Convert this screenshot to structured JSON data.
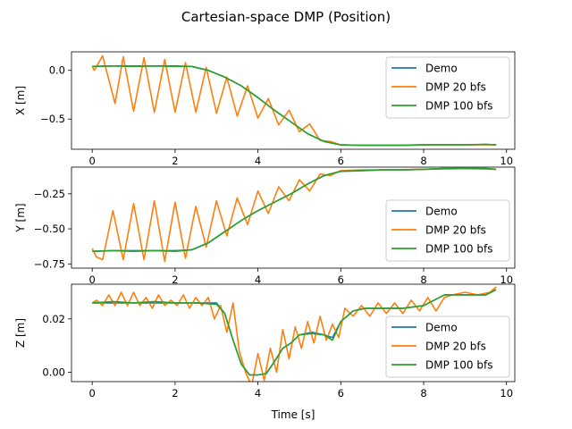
{
  "chart_data": {
    "type": "line",
    "title": "Cartesian-space DMP (Position)",
    "xlabel": "Time [s]",
    "xlim": [
      -0.5,
      10.2
    ],
    "xticks": [
      0,
      2,
      4,
      6,
      8,
      10
    ],
    "legend_placement": "lower-right",
    "colors": {
      "Demo": "#1f77b4",
      "DMP 20 bfs": "#ff7f0e",
      "DMP 100 bfs": "#2ca02c"
    },
    "subplots": [
      {
        "ylabel": "X [m]",
        "ylim": [
          -0.81,
          0.19
        ],
        "yticks": [
          0.0,
          -0.5
        ],
        "ytick_labels": [
          "0.0",
          "−0.5"
        ],
        "series": [
          {
            "name": "Demo",
            "x": [
              0,
              0.5,
              1.0,
              1.5,
              2.0,
              2.4,
              2.8,
              3.2,
              3.6,
              4.0,
              4.4,
              4.8,
              5.2,
              5.6,
              6.0,
              6.5,
              7.0,
              7.5,
              8.0,
              8.5,
              9.0,
              9.5,
              9.75
            ],
            "values": [
              0.04,
              0.045,
              0.045,
              0.045,
              0.045,
              0.04,
              0.0,
              -0.07,
              -0.16,
              -0.28,
              -0.41,
              -0.53,
              -0.65,
              -0.73,
              -0.765,
              -0.77,
              -0.77,
              -0.77,
              -0.765,
              -0.765,
              -0.765,
              -0.76,
              -0.765
            ]
          },
          {
            "name": "DMP 20 bfs",
            "x": [
              0,
              0.05,
              0.25,
              0.55,
              0.75,
              1.0,
              1.25,
              1.5,
              1.75,
              2.0,
              2.25,
              2.5,
              2.75,
              3.0,
              3.25,
              3.5,
              3.75,
              4.0,
              4.25,
              4.5,
              4.75,
              5.0,
              5.25,
              5.5,
              5.75,
              6.0,
              6.5,
              7.0,
              8.0,
              9.0,
              9.75
            ],
            "values": [
              0.04,
              0.0,
              0.15,
              -0.34,
              0.14,
              -0.42,
              0.13,
              -0.43,
              0.11,
              -0.43,
              0.08,
              -0.43,
              0.03,
              -0.44,
              -0.07,
              -0.47,
              -0.16,
              -0.49,
              -0.29,
              -0.56,
              -0.41,
              -0.63,
              -0.55,
              -0.72,
              -0.73,
              -0.765,
              -0.77,
              -0.77,
              -0.765,
              -0.765,
              -0.765
            ]
          },
          {
            "name": "DMP 100 bfs",
            "x": [
              0,
              0.5,
              1.0,
              1.5,
              2.0,
              2.4,
              2.8,
              3.2,
              3.6,
              4.0,
              4.4,
              4.8,
              5.2,
              5.6,
              6.0,
              6.5,
              7.0,
              7.5,
              8.0,
              8.5,
              9.0,
              9.5,
              9.75
            ],
            "values": [
              0.04,
              0.045,
              0.04,
              0.045,
              0.04,
              0.04,
              0.0,
              -0.07,
              -0.16,
              -0.28,
              -0.41,
              -0.53,
              -0.65,
              -0.73,
              -0.765,
              -0.77,
              -0.77,
              -0.77,
              -0.765,
              -0.765,
              -0.765,
              -0.76,
              -0.765
            ]
          }
        ]
      },
      {
        "ylabel": "Y [m]",
        "ylim": [
          -0.78,
          -0.06
        ],
        "yticks": [
          -0.25,
          -0.5,
          -0.75
        ],
        "ytick_labels": [
          "−0.25",
          "−0.50",
          "−0.75"
        ],
        "series": [
          {
            "name": "Demo",
            "x": [
              0,
              0.5,
              1.0,
              1.5,
              2.0,
              2.4,
              2.8,
              3.2,
              3.6,
              4.0,
              4.4,
              4.8,
              5.2,
              5.6,
              6.0,
              6.5,
              7.0,
              7.5,
              8.0,
              8.5,
              9.0,
              9.5,
              9.75
            ],
            "values": [
              -0.66,
              -0.655,
              -0.655,
              -0.655,
              -0.655,
              -0.65,
              -0.6,
              -0.52,
              -0.44,
              -0.37,
              -0.31,
              -0.25,
              -0.18,
              -0.12,
              -0.09,
              -0.085,
              -0.08,
              -0.08,
              -0.075,
              -0.07,
              -0.07,
              -0.07,
              -0.075
            ]
          },
          {
            "name": "DMP 20 bfs",
            "x": [
              0,
              0.1,
              0.25,
              0.5,
              0.75,
              1.0,
              1.25,
              1.5,
              1.75,
              2.0,
              2.25,
              2.5,
              2.75,
              3.0,
              3.25,
              3.5,
              3.75,
              4.0,
              4.25,
              4.5,
              4.75,
              5.0,
              5.25,
              5.5,
              5.75,
              6.0,
              6.5,
              7.0,
              8.0,
              9.0,
              9.75
            ],
            "values": [
              -0.64,
              -0.7,
              -0.72,
              -0.37,
              -0.72,
              -0.32,
              -0.72,
              -0.3,
              -0.73,
              -0.31,
              -0.71,
              -0.34,
              -0.63,
              -0.3,
              -0.55,
              -0.28,
              -0.47,
              -0.23,
              -0.39,
              -0.2,
              -0.3,
              -0.15,
              -0.23,
              -0.11,
              -0.12,
              -0.085,
              -0.08,
              -0.08,
              -0.075,
              -0.07,
              -0.075
            ]
          },
          {
            "name": "DMP 100 bfs",
            "x": [
              0,
              0.5,
              1.0,
              1.5,
              2.0,
              2.4,
              2.8,
              3.2,
              3.6,
              4.0,
              4.4,
              4.8,
              5.2,
              5.6,
              6.0,
              6.5,
              7.0,
              7.5,
              8.0,
              8.5,
              9.0,
              9.5,
              9.75
            ],
            "values": [
              -0.66,
              -0.655,
              -0.66,
              -0.655,
              -0.66,
              -0.65,
              -0.6,
              -0.52,
              -0.44,
              -0.37,
              -0.31,
              -0.25,
              -0.18,
              -0.12,
              -0.09,
              -0.085,
              -0.08,
              -0.08,
              -0.075,
              -0.07,
              -0.07,
              -0.07,
              -0.075
            ]
          }
        ]
      },
      {
        "ylabel": "Z [m]",
        "ylim": [
          -0.0035,
          0.033
        ],
        "yticks": [
          0.02,
          0.0
        ],
        "ytick_labels": [
          "0.02",
          "0.00"
        ],
        "series": [
          {
            "name": "Demo",
            "x": [
              0,
              0.5,
              1.0,
              1.5,
              2.0,
              2.5,
              3.0,
              3.2,
              3.4,
              3.6,
              3.8,
              4.0,
              4.2,
              4.4,
              4.6,
              4.8,
              5.0,
              5.3,
              5.6,
              5.8,
              6.0,
              6.3,
              6.6,
              7.0,
              7.5,
              8.0,
              8.5,
              9.0,
              9.5,
              9.75
            ],
            "values": [
              0.026,
              0.026,
              0.026,
              0.026,
              0.026,
              0.026,
              0.026,
              0.022,
              0.012,
              0.003,
              -0.001,
              -0.001,
              -0.0005,
              0.004,
              0.009,
              0.011,
              0.014,
              0.015,
              0.014,
              0.013,
              0.019,
              0.023,
              0.024,
              0.024,
              0.024,
              0.025,
              0.029,
              0.029,
              0.029,
              0.031
            ]
          },
          {
            "name": "DMP 20 bfs",
            "x": [
              0,
              0.1,
              0.25,
              0.4,
              0.55,
              0.7,
              0.85,
              1.0,
              1.15,
              1.3,
              1.45,
              1.6,
              1.75,
              1.9,
              2.05,
              2.2,
              2.35,
              2.5,
              2.65,
              2.8,
              2.95,
              3.1,
              3.25,
              3.4,
              3.55,
              3.7,
              3.85,
              4.0,
              4.15,
              4.3,
              4.45,
              4.6,
              4.75,
              4.9,
              5.05,
              5.2,
              5.35,
              5.5,
              5.65,
              5.8,
              5.95,
              6.1,
              6.3,
              6.5,
              6.7,
              6.9,
              7.1,
              7.3,
              7.5,
              7.7,
              7.9,
              8.1,
              8.3,
              8.5,
              8.7,
              9.0,
              9.3,
              9.6,
              9.75
            ],
            "values": [
              0.026,
              0.027,
              0.025,
              0.029,
              0.025,
              0.03,
              0.025,
              0.03,
              0.025,
              0.028,
              0.024,
              0.029,
              0.025,
              0.027,
              0.025,
              0.029,
              0.024,
              0.028,
              0.025,
              0.028,
              0.02,
              0.025,
              0.015,
              0.026,
              0.008,
              0.0,
              -0.005,
              0.007,
              -0.003,
              0.009,
              0.0,
              0.016,
              0.005,
              0.017,
              0.009,
              0.019,
              0.011,
              0.021,
              0.012,
              0.018,
              0.013,
              0.024,
              0.021,
              0.025,
              0.021,
              0.026,
              0.022,
              0.026,
              0.022,
              0.027,
              0.023,
              0.028,
              0.023,
              0.028,
              0.029,
              0.03,
              0.029,
              0.03,
              0.032
            ]
          },
          {
            "name": "DMP 100 bfs",
            "x": [
              0,
              0.5,
              1.0,
              1.5,
              2.0,
              2.5,
              3.0,
              3.2,
              3.4,
              3.6,
              3.8,
              4.0,
              4.2,
              4.4,
              4.6,
              4.8,
              5.0,
              5.3,
              5.6,
              5.8,
              6.0,
              6.3,
              6.6,
              7.0,
              7.5,
              8.0,
              8.5,
              9.0,
              9.5,
              9.75
            ],
            "values": [
              0.026,
              0.0265,
              0.026,
              0.0265,
              0.026,
              0.026,
              0.0255,
              0.022,
              0.012,
              0.003,
              -0.001,
              -0.001,
              -0.0005,
              0.004,
              0.009,
              0.011,
              0.014,
              0.0145,
              0.014,
              0.012,
              0.019,
              0.023,
              0.024,
              0.024,
              0.024,
              0.025,
              0.029,
              0.029,
              0.029,
              0.031
            ]
          }
        ]
      }
    ]
  }
}
